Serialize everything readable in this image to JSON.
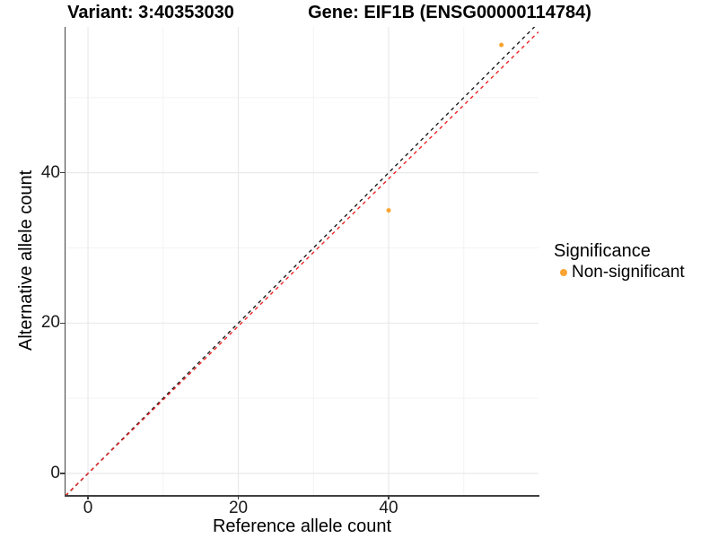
{
  "chart_data": {
    "type": "scatter",
    "title_left": "Variant: 3:40353030",
    "title_right": "Gene: EIF1B (ENSG00000114784)",
    "xlabel": "Reference allele count",
    "ylabel": "Alternative allele count",
    "xlim": [
      -2.99,
      59.94
    ],
    "ylim": [
      -2.86,
      59.4
    ],
    "x_major_ticks": [
      0,
      20,
      40
    ],
    "y_major_ticks": [
      0,
      20,
      40
    ],
    "x_minor_gridlines": [
      10,
      30,
      50
    ],
    "y_minor_gridlines": [
      10,
      30,
      50
    ],
    "legend_position": "right",
    "series": [
      {
        "name": "Non-significant",
        "color": "#F9A432",
        "point_radius": 2.5,
        "points": [
          {
            "x": 40,
            "y": 35
          },
          {
            "x": 55,
            "y": 57
          }
        ]
      }
    ],
    "reference_lines": [
      {
        "name": "identity",
        "slope": 1.0,
        "intercept": 0,
        "color": "#1A1A1A",
        "style": "dashed"
      },
      {
        "name": "fit",
        "slope": 0.98,
        "intercept": 0,
        "color": "#EE2222",
        "style": "dashed"
      }
    ]
  },
  "legend": {
    "title": "Significance",
    "items": [
      {
        "label": "Non-significant",
        "color": "#F9A432",
        "marker": "circle"
      }
    ]
  },
  "colors": {
    "background": "#FFFFFF",
    "axis_line": "#404040",
    "grid_major": "#E9E9E9",
    "grid_minor": "#F3F3F3",
    "tick_mark": "#404040",
    "text": "#000000",
    "point": "#F9A432",
    "identity_line": "#1A1A1A",
    "fit_line": "#EE2222"
  }
}
